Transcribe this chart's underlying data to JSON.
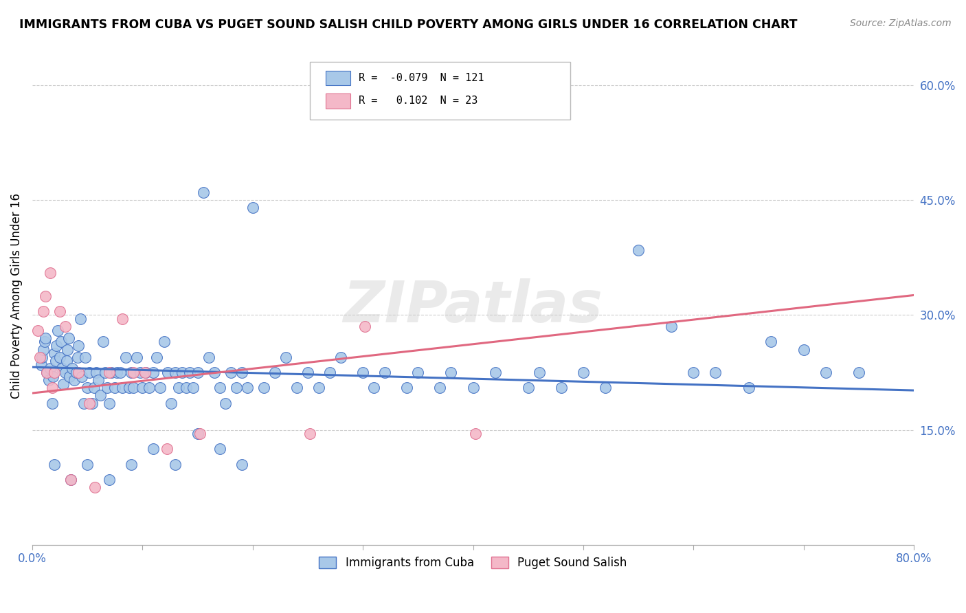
{
  "title": "IMMIGRANTS FROM CUBA VS PUGET SOUND SALISH CHILD POVERTY AMONG GIRLS UNDER 16 CORRELATION CHART",
  "source": "Source: ZipAtlas.com",
  "ylabel": "Child Poverty Among Girls Under 16",
  "xlim": [
    0.0,
    0.8
  ],
  "ylim": [
    0.0,
    0.65
  ],
  "xtick_positions": [
    0.0,
    0.1,
    0.2,
    0.3,
    0.4,
    0.5,
    0.6,
    0.7,
    0.8
  ],
  "xticklabels": [
    "0.0%",
    "",
    "",
    "",
    "",
    "",
    "",
    "",
    "80.0%"
  ],
  "ytick_positions": [
    0.15,
    0.3,
    0.45,
    0.6
  ],
  "ytick_labels": [
    "15.0%",
    "30.0%",
    "45.0%",
    "60.0%"
  ],
  "blue_R": -0.079,
  "blue_N": 121,
  "pink_R": 0.102,
  "pink_N": 23,
  "blue_face_color": "#a8c8e8",
  "pink_face_color": "#f4b8c8",
  "blue_edge_color": "#4472C4",
  "pink_edge_color": "#E07090",
  "blue_line_color": "#4472C4",
  "pink_line_color": "#E06880",
  "watermark": "ZIPatlas",
  "blue_label": "Immigrants from Cuba",
  "pink_label": "Puget Sound Salish",
  "blue_slope": -0.038,
  "blue_intercept": 0.232,
  "pink_slope": 0.16,
  "pink_intercept": 0.198,
  "blue_scatter_x": [
    0.008,
    0.009,
    0.01,
    0.011,
    0.012,
    0.013,
    0.015,
    0.016,
    0.018,
    0.019,
    0.02,
    0.021,
    0.022,
    0.023,
    0.025,
    0.026,
    0.027,
    0.028,
    0.03,
    0.031,
    0.032,
    0.033,
    0.034,
    0.036,
    0.038,
    0.04,
    0.041,
    0.042,
    0.044,
    0.045,
    0.047,
    0.048,
    0.05,
    0.052,
    0.054,
    0.056,
    0.058,
    0.06,
    0.062,
    0.064,
    0.066,
    0.068,
    0.07,
    0.072,
    0.075,
    0.077,
    0.08,
    0.082,
    0.085,
    0.088,
    0.09,
    0.092,
    0.095,
    0.098,
    0.1,
    0.103,
    0.106,
    0.11,
    0.113,
    0.116,
    0.12,
    0.123,
    0.126,
    0.13,
    0.133,
    0.136,
    0.14,
    0.143,
    0.146,
    0.15,
    0.155,
    0.16,
    0.165,
    0.17,
    0.175,
    0.18,
    0.185,
    0.19,
    0.195,
    0.2,
    0.21,
    0.22,
    0.23,
    0.24,
    0.25,
    0.26,
    0.27,
    0.28,
    0.3,
    0.31,
    0.32,
    0.34,
    0.35,
    0.37,
    0.38,
    0.4,
    0.42,
    0.45,
    0.46,
    0.48,
    0.5,
    0.52,
    0.55,
    0.58,
    0.6,
    0.62,
    0.65,
    0.67,
    0.7,
    0.72,
    0.75,
    0.02,
    0.035,
    0.05,
    0.07,
    0.09,
    0.11,
    0.13,
    0.15,
    0.17,
    0.19
  ],
  "blue_scatter_y": [
    0.235,
    0.245,
    0.255,
    0.265,
    0.27,
    0.225,
    0.215,
    0.23,
    0.185,
    0.22,
    0.25,
    0.24,
    0.26,
    0.28,
    0.245,
    0.265,
    0.23,
    0.21,
    0.225,
    0.24,
    0.255,
    0.27,
    0.22,
    0.23,
    0.215,
    0.225,
    0.245,
    0.26,
    0.295,
    0.22,
    0.185,
    0.245,
    0.205,
    0.225,
    0.185,
    0.205,
    0.225,
    0.215,
    0.195,
    0.265,
    0.225,
    0.205,
    0.185,
    0.225,
    0.205,
    0.225,
    0.225,
    0.205,
    0.245,
    0.205,
    0.225,
    0.205,
    0.245,
    0.225,
    0.205,
    0.225,
    0.205,
    0.225,
    0.245,
    0.205,
    0.265,
    0.225,
    0.185,
    0.225,
    0.205,
    0.225,
    0.205,
    0.225,
    0.205,
    0.225,
    0.46,
    0.245,
    0.225,
    0.205,
    0.185,
    0.225,
    0.205,
    0.225,
    0.205,
    0.44,
    0.205,
    0.225,
    0.245,
    0.205,
    0.225,
    0.205,
    0.225,
    0.245,
    0.225,
    0.205,
    0.225,
    0.205,
    0.225,
    0.205,
    0.225,
    0.205,
    0.225,
    0.205,
    0.225,
    0.205,
    0.225,
    0.205,
    0.385,
    0.285,
    0.225,
    0.225,
    0.205,
    0.265,
    0.255,
    0.225,
    0.225,
    0.105,
    0.085,
    0.105,
    0.085,
    0.105,
    0.125,
    0.105,
    0.145,
    0.125,
    0.105
  ],
  "pink_scatter_x": [
    0.005,
    0.007,
    0.01,
    0.012,
    0.013,
    0.016,
    0.018,
    0.02,
    0.025,
    0.03,
    0.035,
    0.042,
    0.052,
    0.057,
    0.07,
    0.082,
    0.092,
    0.102,
    0.122,
    0.152,
    0.252,
    0.302,
    0.402
  ],
  "pink_scatter_y": [
    0.28,
    0.245,
    0.305,
    0.325,
    0.225,
    0.355,
    0.205,
    0.225,
    0.305,
    0.285,
    0.085,
    0.225,
    0.185,
    0.075,
    0.225,
    0.295,
    0.225,
    0.225,
    0.125,
    0.145,
    0.145,
    0.285,
    0.145
  ]
}
